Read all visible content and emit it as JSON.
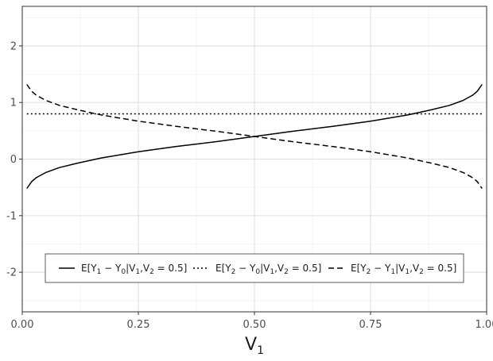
{
  "chart_data": {
    "type": "line",
    "title": "",
    "xlabel": "V",
    "xlabel_sub": "1",
    "ylabel": "",
    "xlim": [
      0.0,
      1.0
    ],
    "ylim": [
      -2.7,
      2.7
    ],
    "x_ticks": [
      0.0,
      0.25,
      0.5,
      0.75,
      1.0
    ],
    "x_tick_labels": [
      "0.00",
      "0.25",
      "0.50",
      "0.75",
      "1.00"
    ],
    "y_ticks": [
      -2,
      -1,
      0,
      1,
      2
    ],
    "y_tick_labels": [
      "-2",
      "-1",
      "0",
      "1",
      "2"
    ],
    "grid": true,
    "legend_position": "bottom",
    "series": [
      {
        "legend": {
          "prefix": "E[Y",
          "sub1": "1",
          "mid": " − Y",
          "sub2": "0",
          "bar": "|V",
          "sub3": "1",
          "comma": ",V",
          "sub4": "2",
          "tail": " = 0.5]"
        },
        "linestyle": "solid",
        "x": [
          0.01,
          0.02,
          0.03,
          0.05,
          0.08,
          0.12,
          0.17,
          0.25,
          0.33,
          0.42,
          0.5,
          0.58,
          0.67,
          0.75,
          0.83,
          0.88,
          0.92,
          0.95,
          0.97,
          0.98,
          0.99
        ],
        "y": [
          -0.52,
          -0.4,
          -0.33,
          -0.24,
          -0.15,
          -0.07,
          0.02,
          0.13,
          0.22,
          0.31,
          0.4,
          0.49,
          0.58,
          0.67,
          0.78,
          0.87,
          0.95,
          1.04,
          1.13,
          1.2,
          1.32
        ]
      },
      {
        "legend": {
          "prefix": "E[Y",
          "sub1": "2",
          "mid": " − Y",
          "sub2": "0",
          "bar": "|V",
          "sub3": "1",
          "comma": ",V",
          "sub4": "2",
          "tail": " = 0.5]"
        },
        "linestyle": "dotted",
        "x": [
          0.01,
          0.99
        ],
        "y": [
          0.8,
          0.8
        ]
      },
      {
        "legend": {
          "prefix": "E[Y",
          "sub1": "2",
          "mid": " − Y",
          "sub2": "1",
          "bar": "|V",
          "sub3": "1",
          "comma": ",V",
          "sub4": "2",
          "tail": " = 0.5]"
        },
        "linestyle": "dashed",
        "x": [
          0.01,
          0.02,
          0.03,
          0.05,
          0.08,
          0.12,
          0.17,
          0.25,
          0.33,
          0.42,
          0.5,
          0.58,
          0.67,
          0.75,
          0.83,
          0.88,
          0.92,
          0.95,
          0.97,
          0.98,
          0.99
        ],
        "y": [
          1.32,
          1.2,
          1.13,
          1.04,
          0.95,
          0.87,
          0.78,
          0.67,
          0.58,
          0.49,
          0.4,
          0.31,
          0.22,
          0.13,
          0.02,
          -0.07,
          -0.15,
          -0.24,
          -0.33,
          -0.4,
          -0.52
        ]
      }
    ]
  }
}
